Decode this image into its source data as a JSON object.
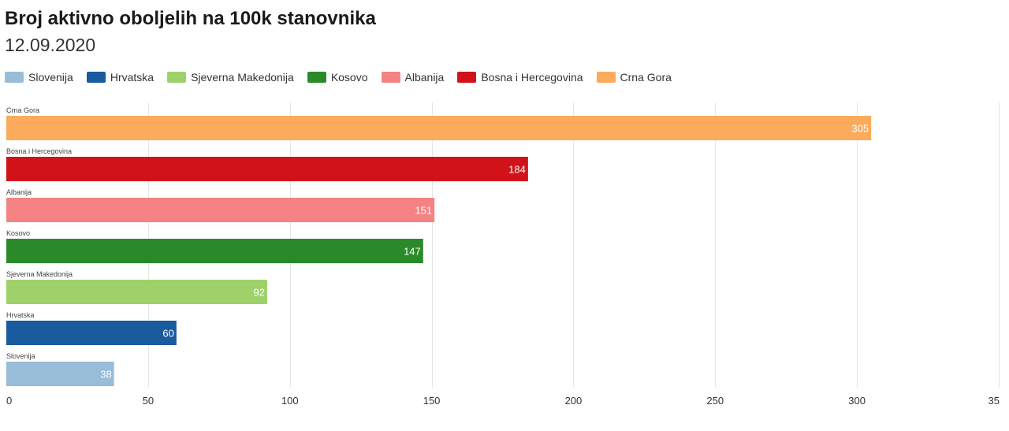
{
  "header": {
    "title": "Broj aktivno oboljelih na 100k stanovnika",
    "subtitle": "12.09.2020"
  },
  "legend": [
    {
      "label": "Slovenija",
      "color": "#97bdd8"
    },
    {
      "label": "Hrvatska",
      "color": "#1a5a9e"
    },
    {
      "label": "Sjeverna Makedonija",
      "color": "#9fd16b"
    },
    {
      "label": "Kosovo",
      "color": "#2a8a2a"
    },
    {
      "label": "Albanija",
      "color": "#f58383"
    },
    {
      "label": "Bosna i Hercegovina",
      "color": "#d11219"
    },
    {
      "label": "Crna Gora",
      "color": "#fbab5b"
    }
  ],
  "chart_data": {
    "type": "bar",
    "orientation": "horizontal",
    "title": "Broj aktivno oboljelih na 100k stanovnika",
    "subtitle": "12.09.2020",
    "categories": [
      "Crna Gora",
      "Bosna i Hercegovina",
      "Albanija",
      "Kosovo",
      "Sjeverna Makedonija",
      "Hrvatska",
      "Slovenija"
    ],
    "values": [
      305,
      184,
      151,
      147,
      92,
      60,
      38
    ],
    "colors": [
      "#fbab5b",
      "#d11219",
      "#f58383",
      "#2a8a2a",
      "#9fd16b",
      "#1a5a9e",
      "#97bdd8"
    ],
    "xlim": [
      0,
      350
    ],
    "xticks": [
      "0",
      "50",
      "100",
      "150",
      "200",
      "250",
      "300",
      "35"
    ],
    "grid": true,
    "legend_position": "top-left"
  }
}
